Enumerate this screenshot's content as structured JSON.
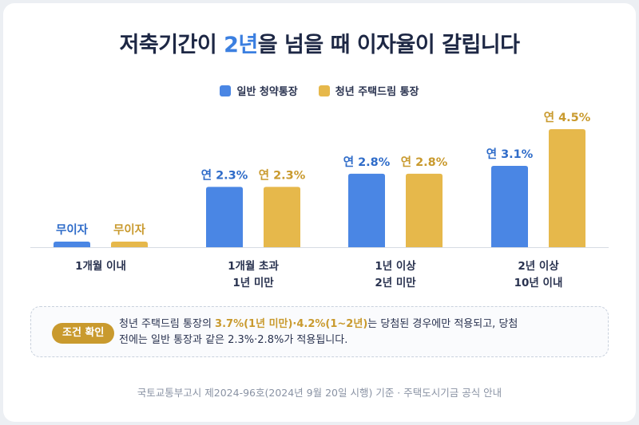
{
  "title": {
    "part1": "저축기간이 ",
    "highlight": "2년",
    "part2": "을 넘을 때 이자율이 갈립니다"
  },
  "colors": {
    "general": "#4a86e4",
    "youth": "#e6b84b",
    "general_text": "#2f6cc9",
    "youth_text": "#c99a2e",
    "title": "#1d2744",
    "accent": "#3b7fe0"
  },
  "chart_data": {
    "type": "bar",
    "categories": [
      [
        "1개월 이내"
      ],
      [
        "1개월 초과",
        "1년 미만"
      ],
      [
        "1년 이상",
        "2년 미만"
      ],
      [
        "2년 이상",
        "10년 이내"
      ]
    ],
    "series": [
      {
        "name": "일반 청약통장",
        "values": [
          0,
          2.3,
          2.8,
          3.1
        ],
        "labels": [
          "무이자",
          "연 2.3%",
          "연 2.8%",
          "연 3.1%"
        ]
      },
      {
        "name": "청년 주택드림 통장",
        "values": [
          0,
          2.3,
          2.8,
          4.5
        ],
        "labels": [
          "무이자",
          "연 2.3%",
          "연 2.8%",
          "연 4.5%"
        ]
      }
    ],
    "ylim": [
      0,
      4.5
    ],
    "legend": "top-center",
    "grid": false
  },
  "note": {
    "badge": "조건 확인",
    "line1_prefix": "청년 주택드림 통장의 ",
    "line1_highlight": "3.7%(1년 미만)·4.2%(1~2년)",
    "line1_suffix": "는 당첨된 경우에만 적용되고, 당첨",
    "line2": "전에는 일반 통장과 같은 2.3%·2.8%가 적용됩니다."
  },
  "source": "국토교통부고시 제2024-96호(2024년 9월 20일 시행) 기준 · 주택도시기금 공식 안내"
}
